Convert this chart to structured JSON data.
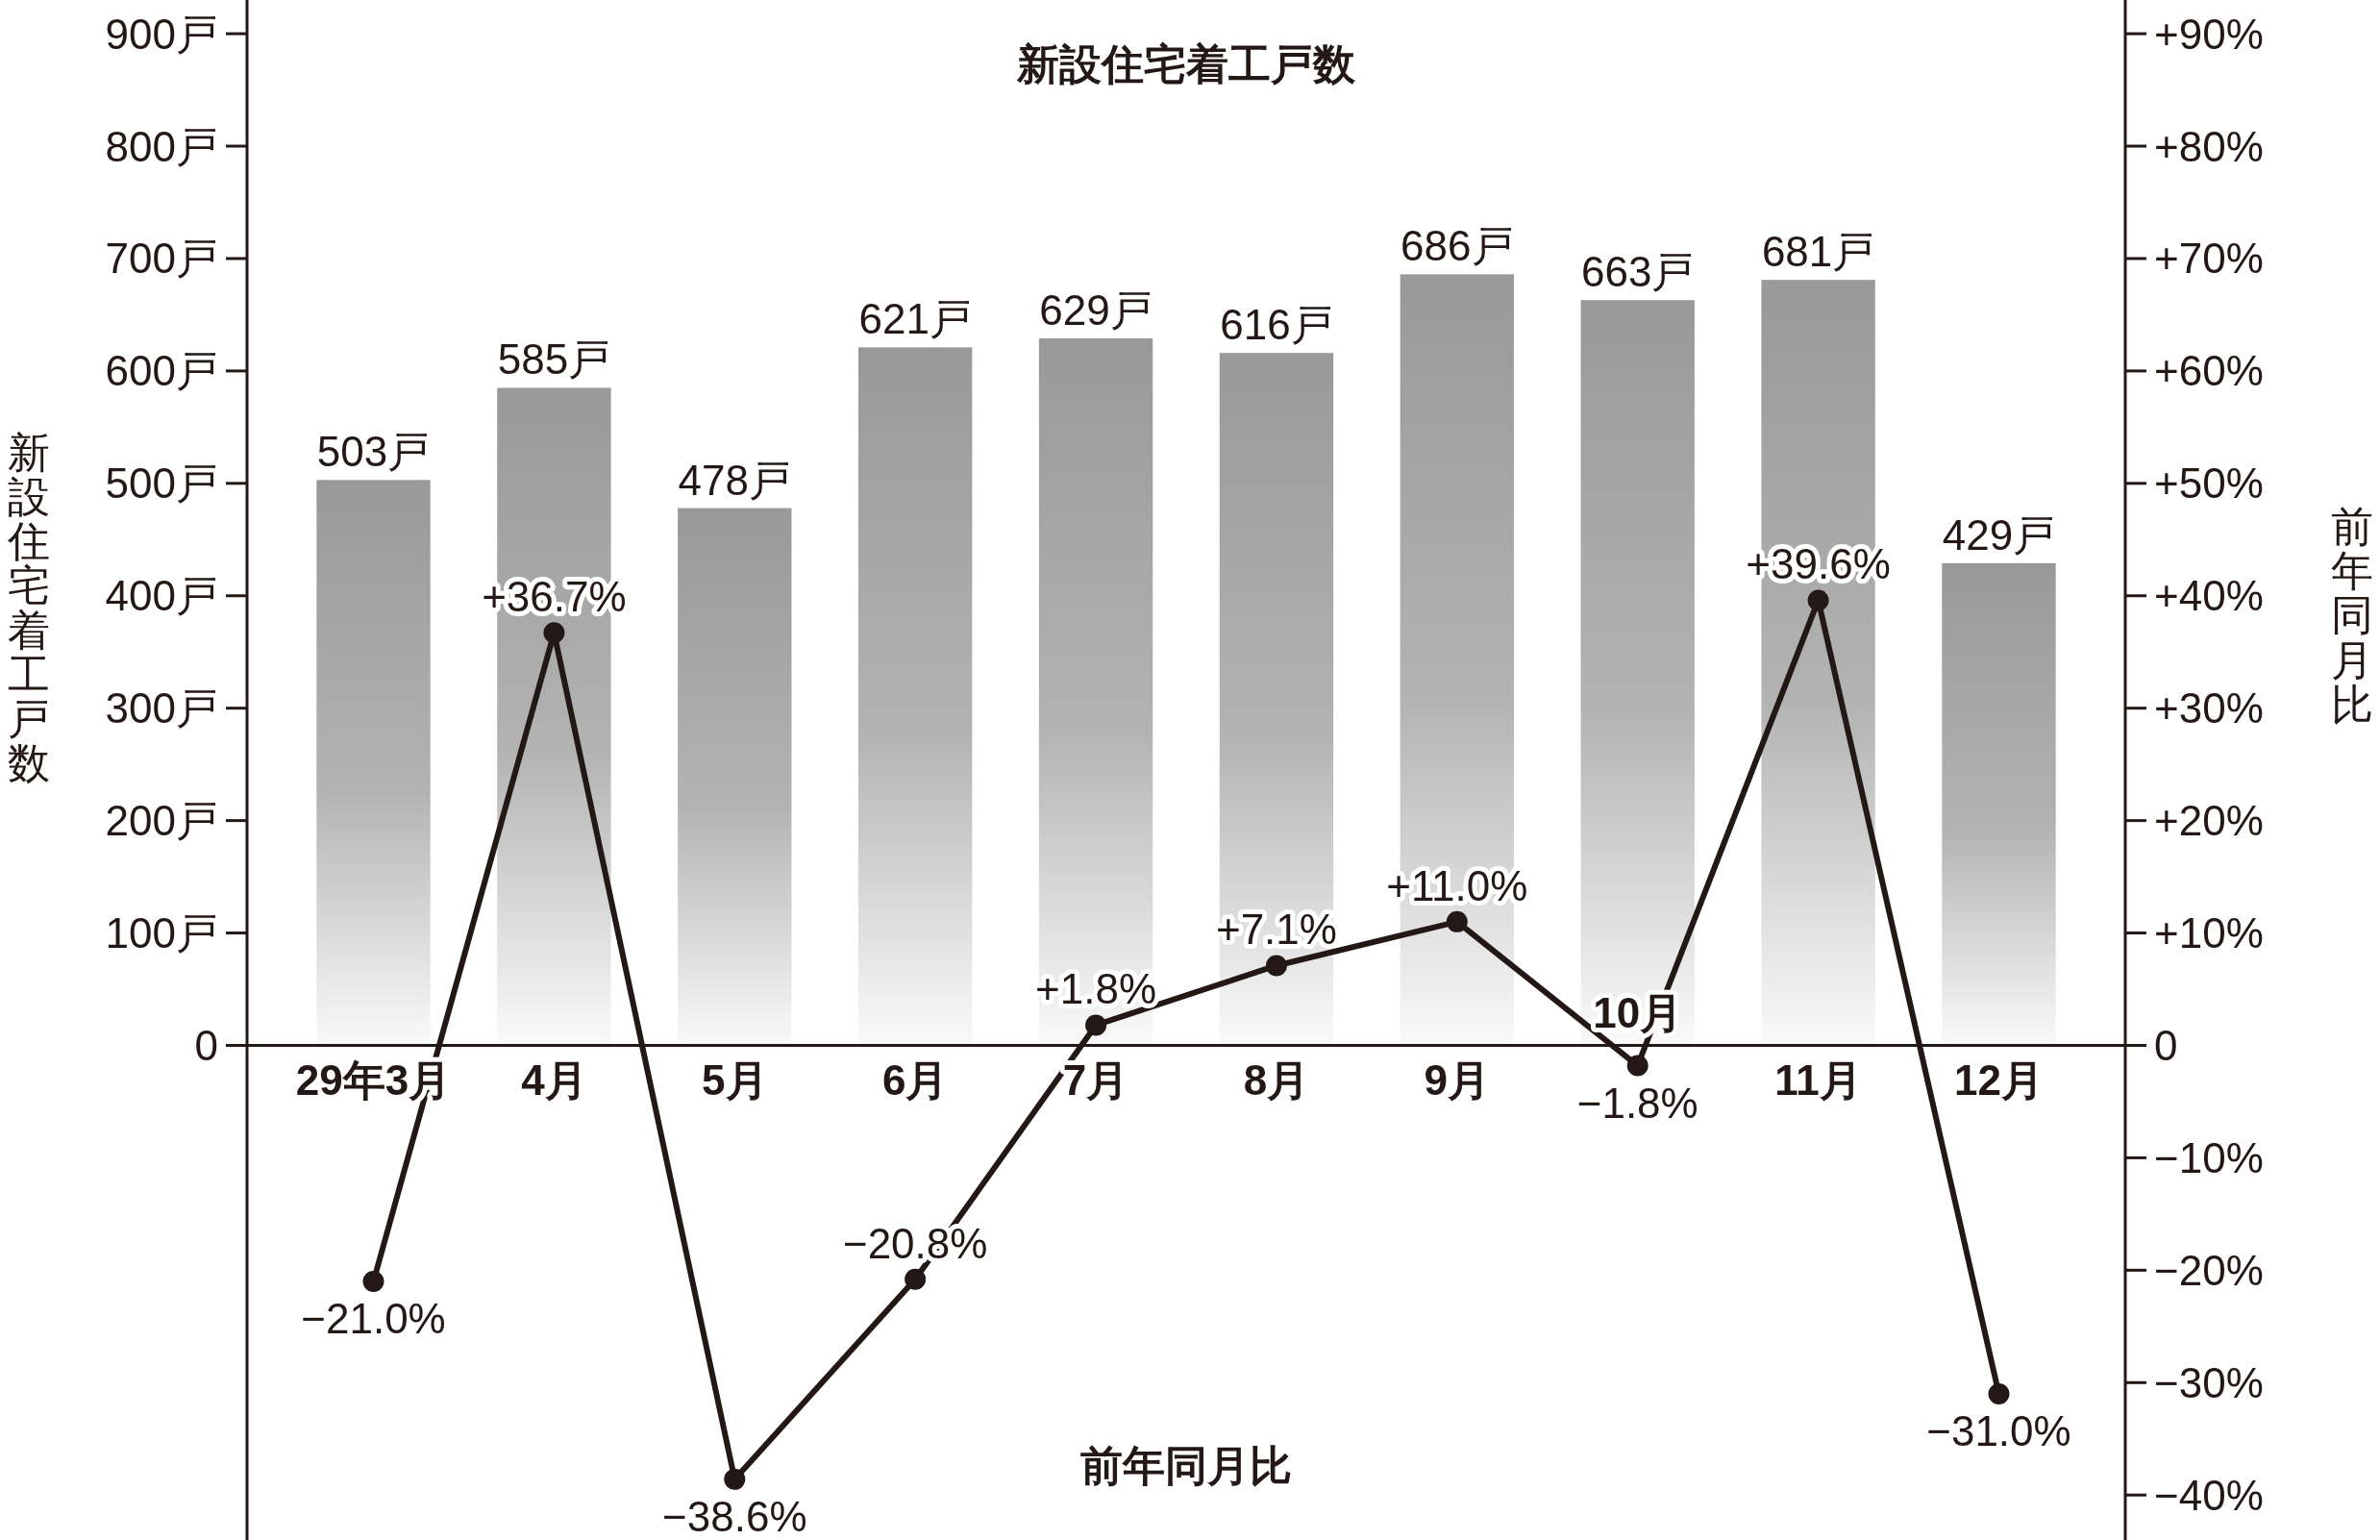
{
  "chart_data": {
    "type": "bar",
    "title": "新設住宅着工戸数",
    "ylabel": "新設住宅着工戸数",
    "y2label": "前年同月比",
    "annotations": [
      "前年同月比"
    ],
    "categories": [
      "29年3月",
      "4月",
      "5月",
      "6月",
      "7月",
      "8月",
      "9月",
      "10月",
      "11月",
      "12月"
    ],
    "series": [
      {
        "color": "#999999",
        "values": [
          503,
          585,
          478,
          621,
          629,
          616,
          686,
          663,
          681,
          429
        ],
        "value_labels": [
          "503戸",
          "585戸",
          "478戸",
          "621戸",
          "629戸",
          "616戸",
          "686戸",
          "663戸",
          "681戸",
          "429戸"
        ]
      },
      {
        "type": "line",
        "axis": "y2",
        "color": "#231815",
        "values": [
          -21.0,
          36.7,
          -38.6,
          -20.8,
          1.8,
          7.1,
          11.0,
          -1.8,
          39.6,
          -31.0
        ],
        "value_labels": [
          "−21.0%",
          "+36.7%",
          "−38.6%",
          "−20.8%",
          "+1.8%",
          "+7.1%",
          "+11.0%",
          "−1.8%",
          "+39.6%",
          "−31.0%"
        ]
      }
    ],
    "marker": "circle",
    "ylim": [
      -440,
      930
    ],
    "yticks": [
      {
        "value": 0,
        "label": "0"
      },
      {
        "value": 100,
        "label": "100戸"
      },
      {
        "value": 200,
        "label": "200戸"
      },
      {
        "value": 300,
        "label": "300戸"
      },
      {
        "value": 400,
        "label": "400戸"
      },
      {
        "value": 500,
        "label": "500戸"
      },
      {
        "value": 600,
        "label": "600戸"
      },
      {
        "value": 700,
        "label": "700戸"
      },
      {
        "value": 800,
        "label": "800戸"
      },
      {
        "value": 900,
        "label": "900戸"
      }
    ],
    "y2lim": [
      -44,
      93
    ],
    "y2ticks": [
      {
        "value": -40,
        "label": "−40%"
      },
      {
        "value": -30,
        "label": "−30%"
      },
      {
        "value": -20,
        "label": "−20%"
      },
      {
        "value": -10,
        "label": "−10%"
      },
      {
        "value": 0,
        "label": "0"
      },
      {
        "value": 10,
        "label": "+10%"
      },
      {
        "value": 20,
        "label": "+20%"
      },
      {
        "value": 30,
        "label": "+30%"
      },
      {
        "value": 40,
        "label": "+40%"
      },
      {
        "value": 50,
        "label": "+50%"
      },
      {
        "value": 60,
        "label": "+60%"
      },
      {
        "value": 70,
        "label": "+70%"
      },
      {
        "value": 80,
        "label": "+80%"
      },
      {
        "value": 90,
        "label": "+90%"
      }
    ]
  }
}
